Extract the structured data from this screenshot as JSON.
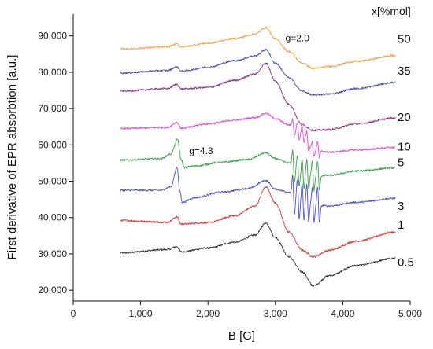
{
  "chart_data": {
    "type": "line",
    "xlabel": "B [G]",
    "ylabel": "First derivative of EPR absorbtion [a.u.]",
    "xlim": [
      0,
      5000
    ],
    "ylim": [
      17000,
      96000
    ],
    "xticks": [
      0,
      1000,
      2000,
      3000,
      4000,
      5000
    ],
    "xtick_labels": [
      "0",
      "1,000",
      "2,000",
      "3,000",
      "4,000",
      "5,000"
    ],
    "yticks": [
      20000,
      30000,
      40000,
      50000,
      60000,
      70000,
      80000,
      90000
    ],
    "ytick_labels": [
      "20,000",
      "30,000",
      "40,000",
      "50,000",
      "60,000",
      "70,000",
      "80,000",
      "90,000"
    ],
    "legend_title": "x[%mol]",
    "annotations": [
      {
        "text": "g=2.0",
        "x": 3150,
        "y": 88500
      },
      {
        "text": "g=4.3",
        "x": 1720,
        "y": 57500
      }
    ],
    "series": [
      {
        "name": "0.5",
        "color": "#333333",
        "hyperfine": false,
        "x": [
          700,
          1400,
          1540,
          1600,
          2000,
          2400,
          2700,
          2860,
          3000,
          3200,
          3400,
          3560,
          3800,
          4200,
          4780
        ],
        "y": [
          30300,
          31200,
          32000,
          30600,
          31600,
          33200,
          35200,
          38500,
          34500,
          29200,
          25000,
          21200,
          24000,
          26800,
          28800
        ]
      },
      {
        "name": "1",
        "color": "#e0302b",
        "hyperfine": false,
        "x": [
          700,
          1400,
          1540,
          1600,
          2000,
          2400,
          2700,
          2860,
          3000,
          3200,
          3400,
          3560,
          3800,
          4200,
          4780
        ],
        "y": [
          39200,
          38700,
          40200,
          38200,
          38600,
          40500,
          43200,
          48500,
          44000,
          36000,
          31000,
          29200,
          31000,
          33500,
          36000
        ]
      },
      {
        "name": "3",
        "color": "#4b4fd6",
        "hyperfine": true,
        "x": [
          700,
          1300,
          1450,
          1540,
          1580,
          1620,
          1800,
          2200,
          2600,
          2860,
          3000,
          3200,
          3400,
          3560,
          3800,
          4200,
          4780
        ],
        "y": [
          47500,
          47500,
          48500,
          53800,
          47500,
          44200,
          45500,
          47000,
          48000,
          50200,
          47800,
          47000,
          44500,
          43500,
          43200,
          44200,
          45300
        ]
      },
      {
        "name": "5",
        "color": "#3ba04a",
        "hyperfine": true,
        "x": [
          700,
          1300,
          1450,
          1550,
          1600,
          1650,
          1800,
          2200,
          2600,
          2860,
          3000,
          3200,
          3400,
          3560,
          3800,
          4200,
          4780
        ],
        "y": [
          55800,
          56200,
          57500,
          61500,
          56000,
          53800,
          54200,
          55200,
          56000,
          57800,
          56200,
          55000,
          52200,
          51500,
          51600,
          52800,
          53700
        ]
      },
      {
        "name": "10",
        "color": "#e04ae0",
        "hyperfine": true,
        "x": [
          700,
          1400,
          1540,
          1600,
          2000,
          2400,
          2700,
          2860,
          3000,
          3200,
          3400,
          3560,
          3800,
          4200,
          4780
        ],
        "y": [
          64500,
          64800,
          66200,
          64600,
          65800,
          66800,
          67500,
          68700,
          67200,
          65500,
          63200,
          58800,
          58000,
          58600,
          59300
        ]
      },
      {
        "name": "20",
        "color": "#8b2f8b",
        "hyperfine": false,
        "x": [
          700,
          1400,
          1540,
          1600,
          2000,
          2400,
          2700,
          2860,
          3000,
          3200,
          3400,
          3560,
          3800,
          4200,
          4780
        ],
        "y": [
          74800,
          75500,
          76700,
          75400,
          75800,
          77800,
          79500,
          82500,
          77500,
          71200,
          65500,
          64000,
          64200,
          65800,
          67400
        ]
      },
      {
        "name": "35",
        "color": "#4b4fb0",
        "hyperfine": false,
        "x": [
          700,
          1400,
          1540,
          1600,
          2000,
          2400,
          2700,
          2860,
          3000,
          3200,
          3400,
          3560,
          3800,
          4200,
          4780
        ],
        "y": [
          79800,
          80500,
          81500,
          80300,
          81400,
          83200,
          84500,
          86200,
          82500,
          78500,
          74800,
          73700,
          74000,
          75500,
          77200
        ]
      },
      {
        "name": "50",
        "color": "#f4a14a",
        "hyperfine": false,
        "x": [
          700,
          1400,
          1540,
          1600,
          2000,
          2400,
          2700,
          2860,
          3000,
          3200,
          3400,
          3560,
          3800,
          4200,
          4780
        ],
        "y": [
          86400,
          87000,
          87800,
          87000,
          88000,
          89300,
          90500,
          92300,
          89200,
          85700,
          82500,
          81000,
          81600,
          83000,
          84600
        ]
      }
    ]
  }
}
